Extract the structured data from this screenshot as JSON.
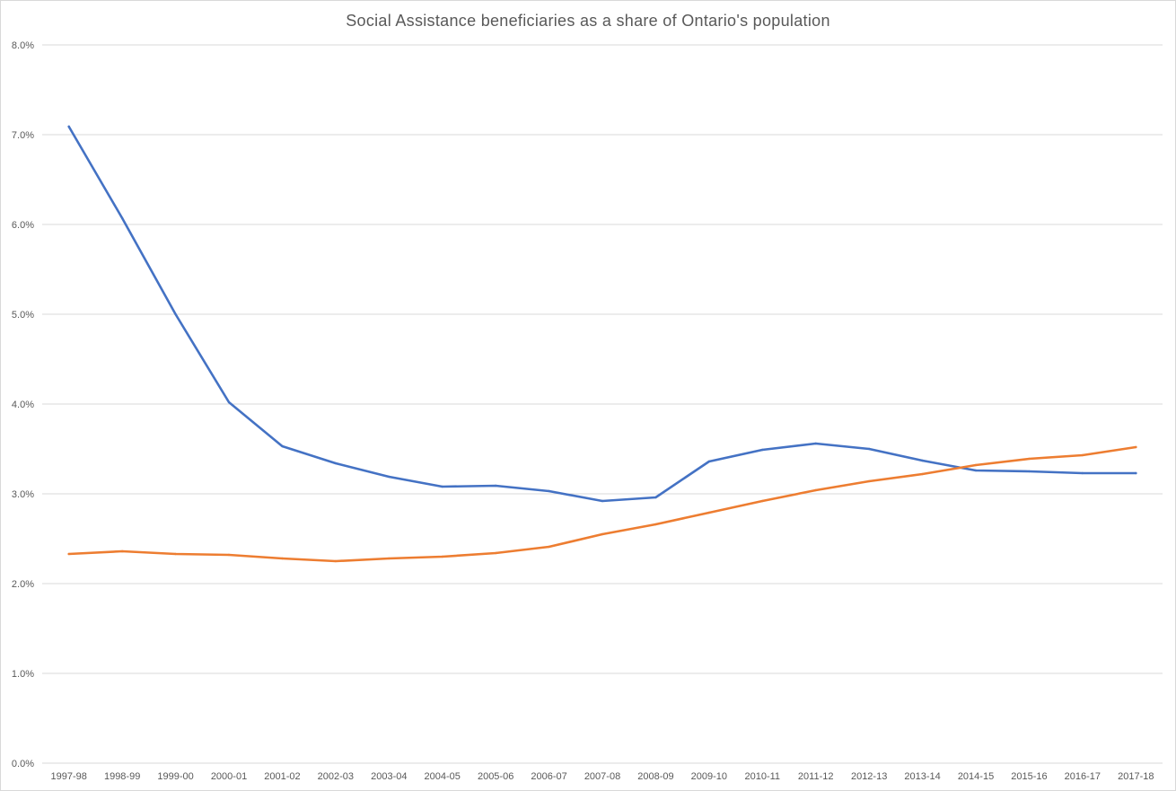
{
  "chart_data": {
    "type": "line",
    "title": "Social Assistance beneficiaries as a share of Ontario's population",
    "xlabel": "",
    "ylabel": "",
    "ylim": [
      0,
      8
    ],
    "y_ticks": [
      "0.0%",
      "1.0%",
      "2.0%",
      "3.0%",
      "4.0%",
      "5.0%",
      "6.0%",
      "7.0%",
      "8.0%"
    ],
    "grid": true,
    "legend": "none",
    "categories": [
      "1997-98",
      "1998-99",
      "1999-00",
      "2000-01",
      "2001-02",
      "2002-03",
      "2003-04",
      "2004-05",
      "2005-06",
      "2006-07",
      "2007-08",
      "2008-09",
      "2009-10",
      "2010-11",
      "2011-12",
      "2012-13",
      "2013-14",
      "2014-15",
      "2015-16",
      "2016-17",
      "2017-18"
    ],
    "series": [
      {
        "name": "Series 1",
        "color": "#4472C4",
        "values": [
          7.09,
          6.07,
          5.0,
          4.02,
          3.53,
          3.34,
          3.19,
          3.08,
          3.09,
          3.03,
          2.92,
          2.96,
          3.36,
          3.49,
          3.56,
          3.5,
          3.37,
          3.26,
          3.25,
          3.23,
          3.23
        ]
      },
      {
        "name": "Series 2",
        "color": "#ED7D31",
        "values": [
          2.33,
          2.36,
          2.33,
          2.32,
          2.28,
          2.25,
          2.28,
          2.3,
          2.34,
          2.41,
          2.55,
          2.66,
          2.79,
          2.92,
          3.04,
          3.14,
          3.22,
          3.32,
          3.39,
          3.43,
          3.52
        ]
      }
    ]
  }
}
